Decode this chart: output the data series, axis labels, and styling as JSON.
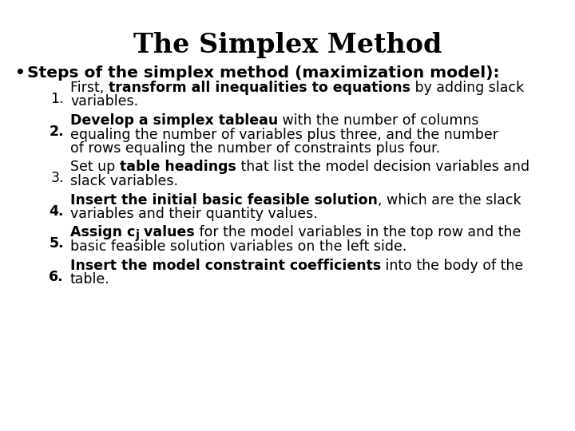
{
  "title": "The Simplex Method",
  "title_fontsize": 24,
  "background_color": "#ffffff",
  "text_color": "#000000",
  "base_fontsize": 12.5,
  "bullet_fontsize": 14.5,
  "items": [
    {
      "number": "1.",
      "num_bold": false,
      "lines": [
        [
          {
            "text": "First, ",
            "bold": false
          },
          {
            "text": "transform all inequalities to equations",
            "bold": true
          },
          {
            "text": " by adding slack",
            "bold": false
          }
        ],
        [
          {
            "text": "variables.",
            "bold": false
          }
        ]
      ]
    },
    {
      "number": "2.",
      "num_bold": true,
      "lines": [
        [
          {
            "text": "Develop a simplex tableau",
            "bold": true
          },
          {
            "text": " with the number of columns",
            "bold": false
          }
        ],
        [
          {
            "text": "equaling the number of variables plus three, and the number",
            "bold": false
          }
        ],
        [
          {
            "text": "of rows equaling the number of constraints plus four.",
            "bold": false
          }
        ]
      ]
    },
    {
      "number": "3.",
      "num_bold": false,
      "lines": [
        [
          {
            "text": "Set up ",
            "bold": false
          },
          {
            "text": "table headings",
            "bold": true
          },
          {
            "text": " that list the model decision variables and",
            "bold": false
          }
        ],
        [
          {
            "text": "slack variables.",
            "bold": false
          }
        ]
      ]
    },
    {
      "number": "4.",
      "num_bold": true,
      "lines": [
        [
          {
            "text": "Insert the initial basic feasible solution",
            "bold": true
          },
          {
            "text": ", which are the slack",
            "bold": false
          }
        ],
        [
          {
            "text": "variables and their quantity values.",
            "bold": false
          }
        ]
      ]
    },
    {
      "number": "5.",
      "num_bold": true,
      "lines": [
        [
          {
            "text": "Assign c",
            "bold": true
          },
          {
            "text": "j",
            "bold": true,
            "subscript": true
          },
          {
            "text": " values",
            "bold": true
          },
          {
            "text": " for the model variables in the top row and the",
            "bold": false
          }
        ],
        [
          {
            "text": "basic feasible solution variables on the left side.",
            "bold": false
          }
        ]
      ]
    },
    {
      "number": "6.",
      "num_bold": true,
      "lines": [
        [
          {
            "text": "Insert the model constraint coefficients",
            "bold": true
          },
          {
            "text": " into the body of the",
            "bold": false
          }
        ],
        [
          {
            "text": "table.",
            "bold": false
          }
        ]
      ]
    }
  ]
}
